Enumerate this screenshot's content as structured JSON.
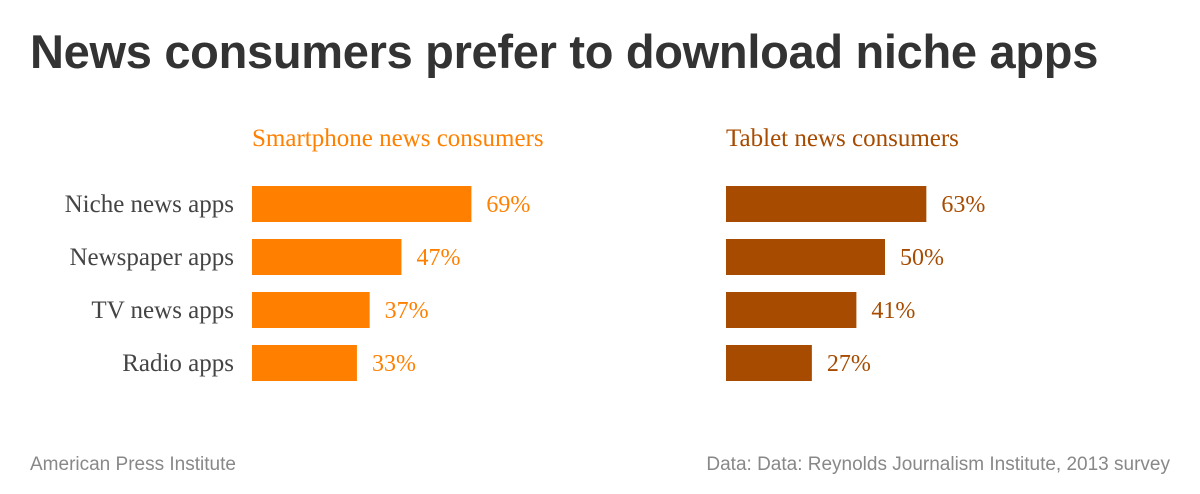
{
  "title": "News consumers prefer to download niche apps",
  "chart_data": {
    "type": "bar",
    "orientation": "horizontal",
    "categories": [
      "Niche news apps",
      "Newspaper apps",
      "TV news apps",
      "Radio apps"
    ],
    "series": [
      {
        "name": "Smartphone news consumers",
        "values": [
          69,
          47,
          37,
          33
        ],
        "color": "#FF8000",
        "labels": [
          "69%",
          "47%",
          "37%",
          "33%"
        ]
      },
      {
        "name": "Tablet news consumers",
        "values": [
          63,
          50,
          41,
          27
        ],
        "color": "#A64B00",
        "labels": [
          "63%",
          "50%",
          "41%",
          "27%"
        ]
      }
    ],
    "value_unit": "%",
    "grid": false
  },
  "footer": {
    "source_left": "American Press Institute",
    "source_right": "Data: Data: Reynolds Journalism Institute, 2013 survey"
  }
}
